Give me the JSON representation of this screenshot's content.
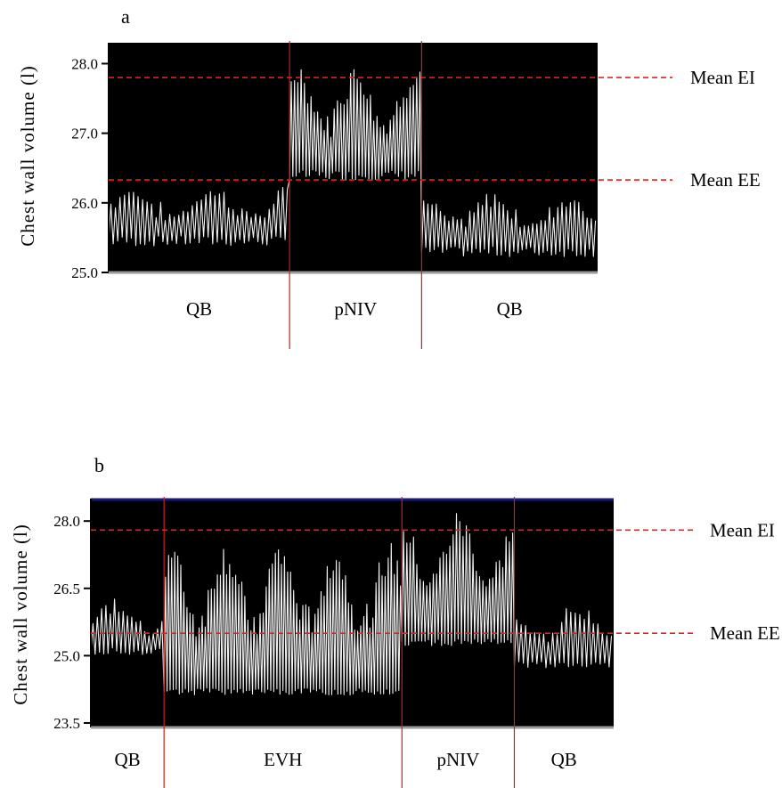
{
  "chart_data": [
    {
      "type": "line",
      "panel_label": "a",
      "ylabel": "Chest wall volume (l)",
      "ylim": [
        25.0,
        28.3
      ],
      "yticks": [
        25.0,
        26.0,
        27.0,
        28.0
      ],
      "ytick_labels": [
        "25.0",
        "26.0",
        "27.0",
        "28.0"
      ],
      "phases": [
        {
          "label": "QB",
          "start": 0.0,
          "end": 0.37,
          "baseline": 25.45,
          "amp": 0.7
        },
        {
          "label": "pNIV",
          "start": 0.37,
          "end": 0.64,
          "baseline": 26.4,
          "amp": 1.45
        },
        {
          "label": "QB",
          "start": 0.64,
          "end": 1.0,
          "baseline": 25.3,
          "amp": 0.75
        }
      ],
      "reference_lines": [
        {
          "label": "Mean EI",
          "y": 27.8,
          "color": "#e8211b"
        },
        {
          "label": "Mean EE",
          "y": 26.33,
          "color": "#e8211b"
        }
      ]
    },
    {
      "type": "line",
      "panel_label": "b",
      "ylabel": "Chest wall volume (l)",
      "ylim": [
        23.4,
        28.5
      ],
      "yticks": [
        23.5,
        25.0,
        26.5,
        28.0
      ],
      "ytick_labels": [
        "23.5",
        "25.0",
        "26.5",
        "28.0"
      ],
      "phases": [
        {
          "label": "QB",
          "start": 0.0,
          "end": 0.14,
          "baseline": 25.1,
          "amp": 1.0
        },
        {
          "label": "EVH",
          "start": 0.14,
          "end": 0.595,
          "baseline": 24.2,
          "amp": 3.0
        },
        {
          "label": "pNIV",
          "start": 0.595,
          "end": 0.81,
          "baseline": 25.3,
          "amp": 2.6
        },
        {
          "label": "QB",
          "start": 0.81,
          "end": 1.0,
          "baseline": 24.8,
          "amp": 1.2
        }
      ],
      "reference_lines": [
        {
          "label": "Mean EI",
          "y": 27.8,
          "color": "#e8211b"
        },
        {
          "label": "Mean EE",
          "y": 25.5,
          "color": "#e8211b"
        }
      ]
    }
  ],
  "colors": {
    "plot_background": "#000000",
    "trace": "#f2f2f2",
    "phase_divider": "#c8201a",
    "reference_line": "#e8211b",
    "top_border_b": "#1a1a7a"
  }
}
